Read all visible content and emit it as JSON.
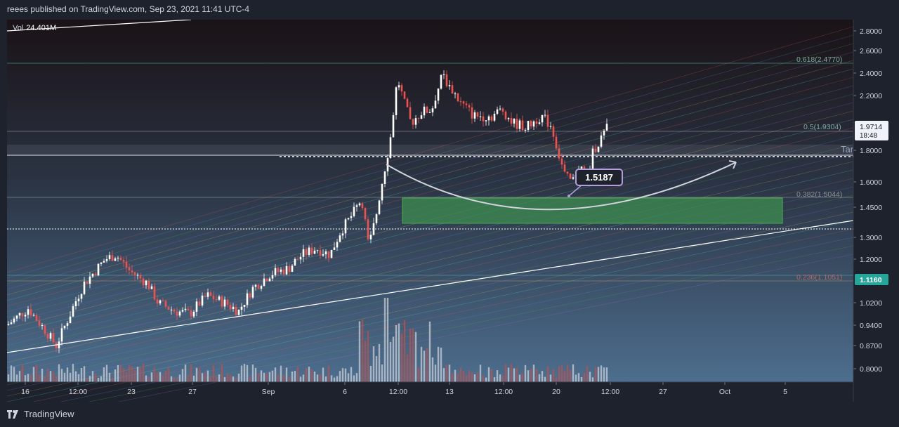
{
  "header": {
    "publisher": "reees published on TradingView.com, Sep 23, 2021 11:41 UTC-4"
  },
  "footer": {
    "brand": "TradingView"
  },
  "volume": {
    "label": "Vol",
    "value": "24.401M"
  },
  "colors": {
    "up": "#ffffff",
    "down": "#ef5350",
    "grid_bg_top": "#1a1216",
    "grid_bg_bottom": "#4d6e8e",
    "zone": "#3d8c4f",
    "price_tag": "#f0f3fa",
    "level_tag": "#26a69a"
  },
  "chart_data": {
    "type": "candlestick",
    "price_axis": {
      "ticks": [
        "2.8000",
        "2.6000",
        "2.4000",
        "2.2000",
        "1.8000",
        "1.6000",
        "1.4500",
        "1.3000",
        "1.2000",
        "1.0200",
        "0.9400",
        "0.8700",
        "0.8000"
      ]
    },
    "time_axis": {
      "ticks": [
        "16",
        "12:00",
        "23",
        "27",
        "Sep",
        "6",
        "12:00",
        "13",
        "12:00",
        "20",
        "12:00",
        "27",
        "Oct",
        "5"
      ]
    },
    "current_price": {
      "value": "1.9714",
      "countdown": "18:48"
    },
    "level_tag": "1.1160",
    "callout": "1.5187",
    "fib_levels": [
      {
        "label": "0.618(2.4770)",
        "value": 2.477
      },
      {
        "label": "0.5(1.9304)",
        "value": 1.9304
      },
      {
        "label": "0.382(1.5044)",
        "value": 1.5044
      },
      {
        "label": "0.236(1.1051)",
        "value": 1.1051
      }
    ],
    "target_label": "Tar",
    "demand_zone": {
      "low": 1.37,
      "high": 1.5044
    }
  }
}
